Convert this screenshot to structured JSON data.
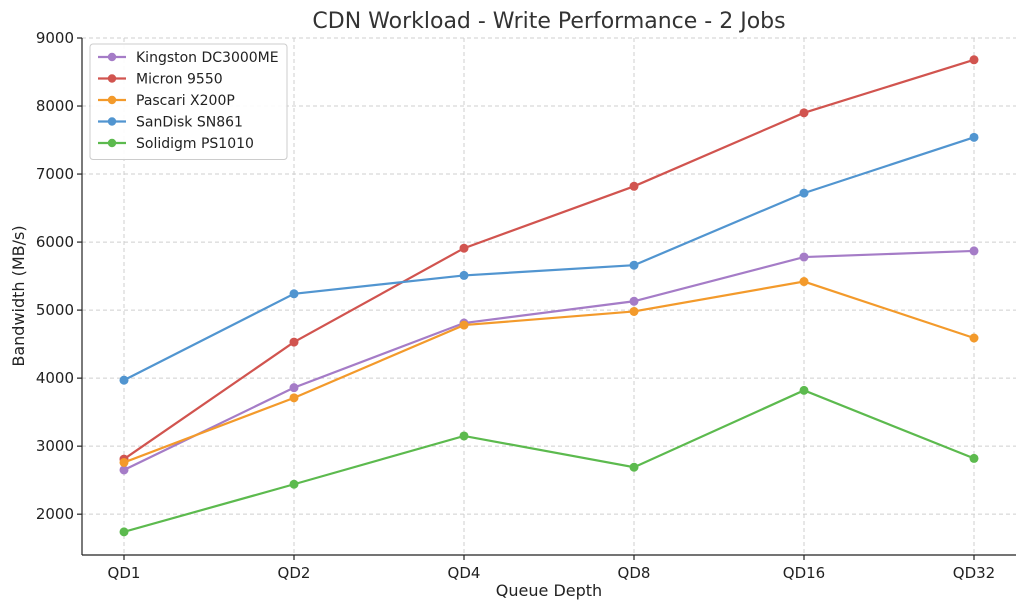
{
  "chart_data": {
    "type": "line",
    "title": "CDN Workload - Write Performance - 2 Jobs",
    "xlabel": "Queue Depth",
    "ylabel": "Bandwidth (MB/s)",
    "categories": [
      "QD1",
      "QD2",
      "QD4",
      "QD8",
      "QD16",
      "QD32"
    ],
    "ylim": [
      1400,
      9000
    ],
    "yticks": [
      2000,
      3000,
      4000,
      5000,
      6000,
      7000,
      8000,
      9000
    ],
    "grid": true,
    "legend_position": "top-left",
    "series": [
      {
        "name": "Kingston DC3000ME",
        "color": "#a57cc7",
        "values": [
          2650,
          3860,
          4810,
          5130,
          5780,
          5870
        ]
      },
      {
        "name": "Micron 9550",
        "color": "#d1544f",
        "values": [
          2810,
          4530,
          5910,
          6820,
          7900,
          8680
        ]
      },
      {
        "name": "Pascari X200P",
        "color": "#f39a2b",
        "values": [
          2760,
          3710,
          4780,
          4980,
          5420,
          4590
        ]
      },
      {
        "name": "SanDisk SN861",
        "color": "#5195d0",
        "values": [
          3970,
          5240,
          5510,
          5660,
          6720,
          7540
        ]
      },
      {
        "name": "Solidigm PS1010",
        "color": "#5cba4e",
        "values": [
          1740,
          2440,
          3150,
          2690,
          3820,
          2820
        ]
      }
    ]
  }
}
